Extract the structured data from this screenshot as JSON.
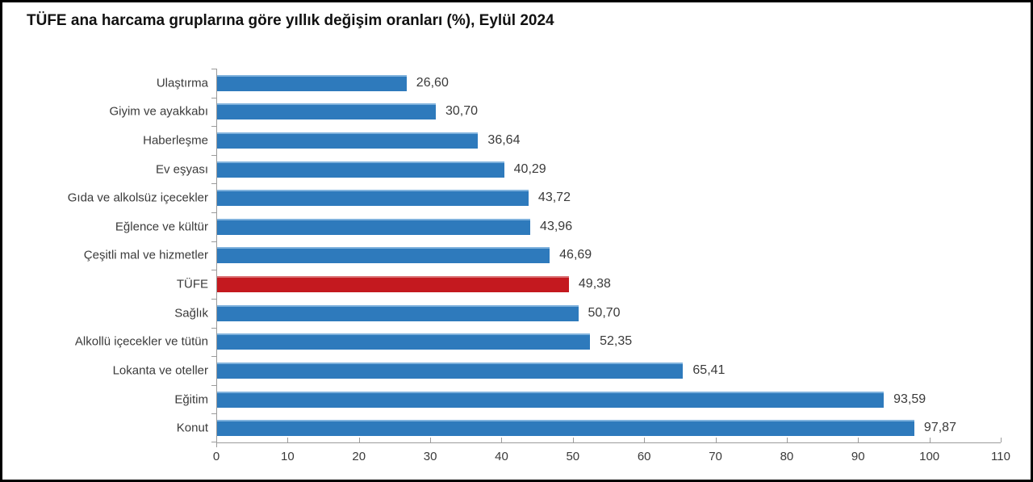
{
  "page": {
    "background": "#ffffff",
    "frame_border_color": "#000000"
  },
  "title": "TÜFE ana harcama gruplarına göre yıllık değişim oranları (%), Eylül 2024",
  "chart_data": {
    "type": "bar",
    "orientation": "horizontal",
    "title": "TÜFE ana harcama gruplarına göre yıllık değişim oranları (%), Eylül 2024",
    "categories": [
      "Ulaştırma",
      "Giyim ve ayakkabı",
      "Haberleşme",
      "Ev eşyası",
      "Gıda ve alkolsüz içecekler",
      "Eğlence ve kültür",
      "Çeşitli mal ve hizmetler",
      "TÜFE",
      "Sağlık",
      "Alkollü içecekler ve tütün",
      "Lokanta ve oteller",
      "Eğitim",
      "Konut"
    ],
    "values": [
      26.6,
      30.7,
      36.64,
      40.29,
      43.72,
      43.96,
      46.69,
      49.38,
      50.7,
      52.35,
      65.41,
      93.59,
      97.87
    ],
    "value_labels": [
      "26,60",
      "30,70",
      "36,64",
      "40,29",
      "43,72",
      "43,96",
      "46,69",
      "49,38",
      "50,70",
      "52,35",
      "65,41",
      "93,59",
      "97,87"
    ],
    "highlight_category": "TÜFE",
    "bar_color": "#2e7abc",
    "bar_color_light": "#7fb2dd",
    "highlight_color": "#c4191f",
    "highlight_color_light": "#da7074",
    "axis_color": "#9b9b9b",
    "label_color": "#3a3a3a",
    "xlim": [
      0,
      110
    ],
    "x_ticks": [
      0,
      10,
      20,
      30,
      40,
      50,
      60,
      70,
      80,
      90,
      100,
      110
    ],
    "x_tick_labels": [
      "0",
      "10",
      "20",
      "30",
      "40",
      "50",
      "60",
      "70",
      "80",
      "90",
      "100",
      "110"
    ],
    "grid": false,
    "legend": "none",
    "xlabel": "",
    "ylabel": ""
  }
}
